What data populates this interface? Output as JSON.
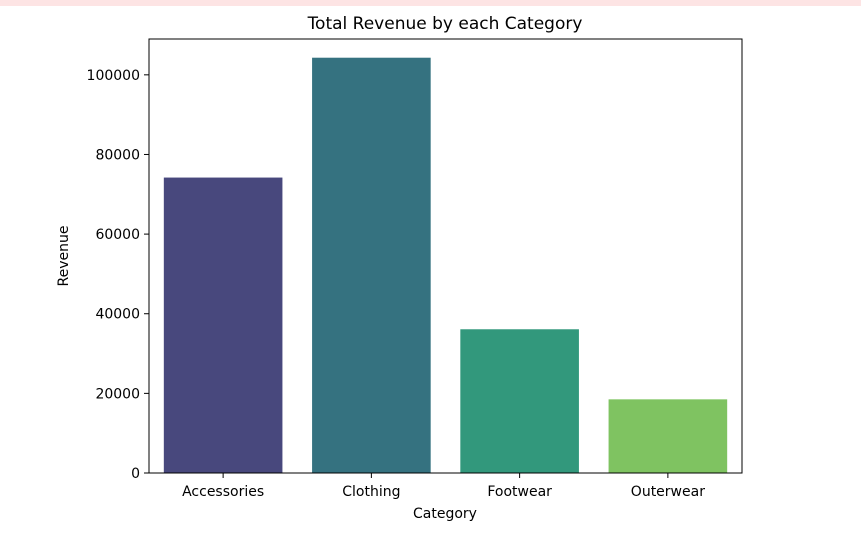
{
  "colors": {
    "background": "#ffffff",
    "bars": [
      "#48487d",
      "#357280",
      "#32987c",
      "#7fc361"
    ],
    "warning_strip": "#fde4e4"
  },
  "chart_data": {
    "type": "bar",
    "title": "Total Revenue by each Category",
    "xlabel": "Category",
    "ylabel": "Revenue",
    "categories": [
      "Accessories",
      "Clothing",
      "Footwear",
      "Outerwear"
    ],
    "values": [
      74200,
      104300,
      36100,
      18500
    ],
    "ylim": [
      0,
      109000
    ],
    "yticks": [
      0,
      20000,
      40000,
      60000,
      80000,
      100000
    ],
    "ytick_labels": [
      "0",
      "20000",
      "40000",
      "60000",
      "80000",
      "100000"
    ],
    "grid": false,
    "legend": "none"
  }
}
